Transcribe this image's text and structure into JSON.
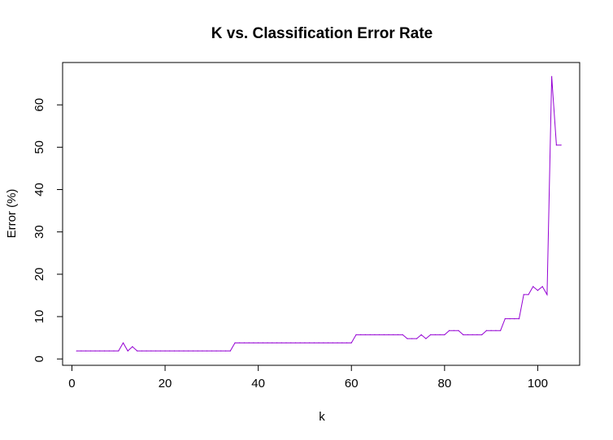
{
  "chart_data": {
    "type": "line",
    "title": "K vs. Classification Error Rate",
    "xlabel": "k",
    "ylabel": "Error (%)",
    "xlim": [
      -2,
      109
    ],
    "ylim": [
      -1.5,
      70
    ],
    "xticks": [
      0,
      20,
      40,
      60,
      80,
      100
    ],
    "yticks": [
      0,
      10,
      20,
      30,
      40,
      50,
      60
    ],
    "grid": false,
    "legend": "none",
    "series": [
      {
        "color": "#9400D3",
        "x": [
          1,
          2,
          3,
          4,
          5,
          6,
          7,
          8,
          9,
          10,
          11,
          12,
          13,
          14,
          15,
          16,
          17,
          18,
          19,
          20,
          21,
          22,
          23,
          24,
          25,
          26,
          27,
          28,
          29,
          30,
          31,
          32,
          33,
          34,
          35,
          36,
          37,
          38,
          39,
          40,
          41,
          42,
          43,
          44,
          45,
          46,
          47,
          48,
          49,
          50,
          51,
          52,
          53,
          54,
          55,
          56,
          57,
          58,
          59,
          60,
          61,
          62,
          63,
          64,
          65,
          66,
          67,
          68,
          69,
          70,
          71,
          72,
          73,
          74,
          75,
          76,
          77,
          78,
          79,
          80,
          81,
          82,
          83,
          84,
          85,
          86,
          87,
          88,
          89,
          90,
          91,
          92,
          93,
          94,
          95,
          96,
          97,
          98,
          99,
          100,
          101,
          102,
          103,
          104,
          105
        ],
        "values": [
          1.9,
          1.9,
          1.9,
          1.9,
          1.9,
          1.9,
          1.9,
          1.9,
          1.9,
          1.9,
          3.8,
          1.9,
          2.9,
          1.9,
          1.9,
          1.9,
          1.9,
          1.9,
          1.9,
          1.9,
          1.9,
          1.9,
          1.9,
          1.9,
          1.9,
          1.9,
          1.9,
          1.9,
          1.9,
          1.9,
          1.9,
          1.9,
          1.9,
          1.9,
          3.8,
          3.8,
          3.8,
          3.8,
          3.8,
          3.8,
          3.8,
          3.8,
          3.8,
          3.8,
          3.8,
          3.8,
          3.8,
          3.8,
          3.8,
          3.8,
          3.8,
          3.8,
          3.8,
          3.8,
          3.8,
          3.8,
          3.8,
          3.8,
          3.8,
          3.8,
          5.7,
          5.7,
          5.7,
          5.7,
          5.7,
          5.7,
          5.7,
          5.7,
          5.7,
          5.7,
          5.7,
          4.8,
          4.8,
          4.8,
          5.7,
          4.8,
          5.7,
          5.7,
          5.7,
          5.7,
          6.7,
          6.7,
          6.7,
          5.7,
          5.7,
          5.7,
          5.7,
          5.7,
          6.7,
          6.7,
          6.7,
          6.7,
          9.5,
          9.5,
          9.5,
          9.5,
          15.2,
          15.2,
          17.1,
          16.2,
          17.1,
          15.2,
          66.7,
          50.5,
          50.5
        ]
      }
    ]
  }
}
